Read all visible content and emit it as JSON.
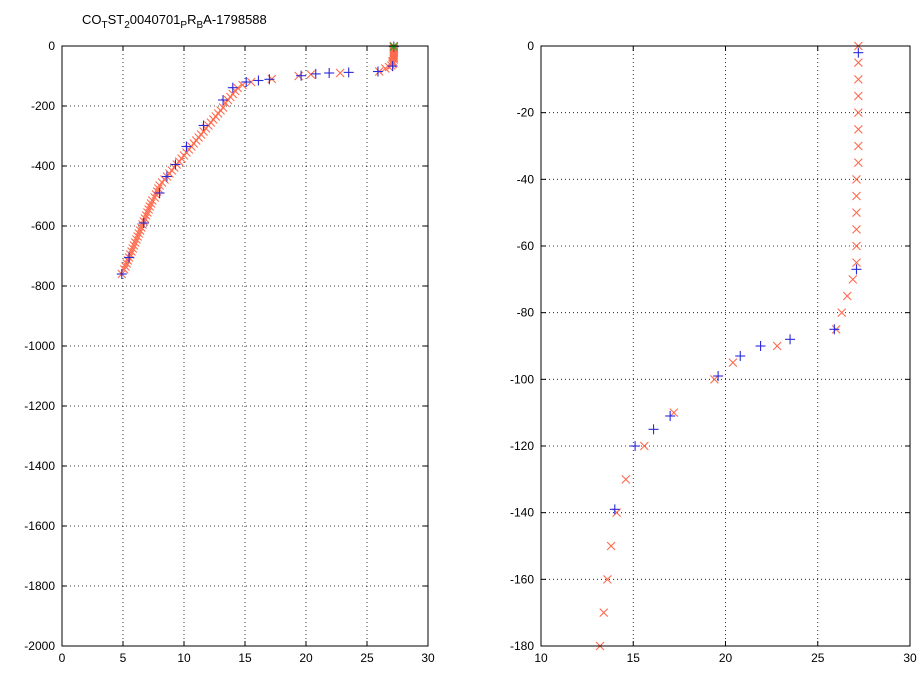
{
  "title_parts": [
    {
      "t": "CO",
      "sub": false
    },
    {
      "t": "T",
      "sub": true
    },
    {
      "t": "ST",
      "sub": false
    },
    {
      "t": "2",
      "sub": true
    },
    {
      "t": "0040701",
      "sub": false
    },
    {
      "t": "P",
      "sub": true
    },
    {
      "t": "R",
      "sub": false
    },
    {
      "t": "B",
      "sub": true
    },
    {
      "t": "A-1798588",
      "sub": false
    }
  ],
  "colors": {
    "red_series": "#ff6a4d",
    "blue_series": "#2b2bd9",
    "green_series": "#22aa22"
  },
  "chart_data": [
    {
      "type": "scatter",
      "xlim": [
        0,
        30
      ],
      "ylim": [
        -2000,
        0
      ],
      "xticks": [
        "0",
        "5",
        "10",
        "15",
        "20",
        "25",
        "30"
      ],
      "yticks": [
        "0",
        "-200",
        "-400",
        "-600",
        "-800",
        "-1000",
        "-1200",
        "-1400",
        "-1600",
        "-1800",
        "-2000"
      ],
      "grid": true,
      "series": [
        {
          "marker": "x",
          "color": "#ff6a4d",
          "points": [
            [
              4.9,
              -760
            ],
            [
              5.1,
              -745
            ],
            [
              5.2,
              -735
            ],
            [
              5.3,
              -725
            ],
            [
              5.4,
              -715
            ],
            [
              5.5,
              -705
            ],
            [
              5.6,
              -695
            ],
            [
              5.7,
              -685
            ],
            [
              5.8,
              -675
            ],
            [
              5.9,
              -665
            ],
            [
              6.0,
              -655
            ],
            [
              6.1,
              -645
            ],
            [
              6.2,
              -635
            ],
            [
              6.3,
              -625
            ],
            [
              6.4,
              -615
            ],
            [
              6.5,
              -605
            ],
            [
              6.6,
              -595
            ],
            [
              6.7,
              -585
            ],
            [
              6.8,
              -575
            ],
            [
              6.9,
              -565
            ],
            [
              7.0,
              -555
            ],
            [
              7.1,
              -545
            ],
            [
              7.2,
              -535
            ],
            [
              7.3,
              -525
            ],
            [
              7.4,
              -515
            ],
            [
              7.6,
              -505
            ],
            [
              7.7,
              -495
            ],
            [
              7.8,
              -485
            ],
            [
              7.9,
              -475
            ],
            [
              8.0,
              -465
            ],
            [
              8.2,
              -455
            ],
            [
              8.4,
              -445
            ],
            [
              8.6,
              -435
            ],
            [
              8.8,
              -425
            ],
            [
              9.0,
              -415
            ],
            [
              9.2,
              -405
            ],
            [
              9.4,
              -395
            ],
            [
              9.6,
              -385
            ],
            [
              9.8,
              -375
            ],
            [
              10.0,
              -365
            ],
            [
              10.2,
              -355
            ],
            [
              10.4,
              -345
            ],
            [
              10.6,
              -335
            ],
            [
              10.8,
              -325
            ],
            [
              11.0,
              -315
            ],
            [
              11.2,
              -305
            ],
            [
              11.4,
              -295
            ],
            [
              11.6,
              -285
            ],
            [
              11.8,
              -275
            ],
            [
              12.0,
              -265
            ],
            [
              12.2,
              -255
            ],
            [
              12.4,
              -245
            ],
            [
              12.6,
              -235
            ],
            [
              12.8,
              -225
            ],
            [
              13.0,
              -215
            ],
            [
              13.2,
              -205
            ],
            [
              13.4,
              -190
            ],
            [
              13.6,
              -180
            ],
            [
              13.8,
              -170
            ],
            [
              14.0,
              -160
            ],
            [
              14.2,
              -150
            ],
            [
              14.4,
              -140
            ],
            [
              14.8,
              -130
            ],
            [
              15.5,
              -120
            ],
            [
              17.2,
              -110
            ],
            [
              19.4,
              -100
            ],
            [
              20.4,
              -95
            ],
            [
              22.8,
              -90
            ],
            [
              26.0,
              -85
            ],
            [
              26.5,
              -75
            ],
            [
              26.8,
              -70
            ],
            [
              27.0,
              -65
            ],
            [
              27.1,
              -60
            ],
            [
              27.1,
              -55
            ],
            [
              27.1,
              -50
            ],
            [
              27.2,
              -45
            ],
            [
              27.2,
              -40
            ],
            [
              27.2,
              -35
            ],
            [
              27.2,
              -30
            ],
            [
              27.2,
              -25
            ],
            [
              27.2,
              -20
            ],
            [
              27.2,
              -15
            ],
            [
              27.2,
              -10
            ],
            [
              27.2,
              -5
            ],
            [
              27.2,
              0
            ]
          ]
        },
        {
          "marker": "+",
          "color": "#2b2bd9",
          "points": [
            [
              4.9,
              -760
            ],
            [
              5.5,
              -705
            ],
            [
              6.7,
              -590
            ],
            [
              8.0,
              -490
            ],
            [
              8.6,
              -435
            ],
            [
              9.3,
              -395
            ],
            [
              10.2,
              -335
            ],
            [
              11.6,
              -265
            ],
            [
              13.2,
              -180
            ],
            [
              14.0,
              -139
            ],
            [
              15.1,
              -120
            ],
            [
              16.1,
              -115
            ],
            [
              17.0,
              -111
            ],
            [
              19.6,
              -99
            ],
            [
              20.8,
              -93
            ],
            [
              21.9,
              -90
            ],
            [
              23.5,
              -88
            ],
            [
              25.9,
              -85
            ],
            [
              27.1,
              -67
            ],
            [
              27.2,
              -2
            ]
          ]
        },
        {
          "marker": "*",
          "color": "#22aa22",
          "points": [
            [
              27.2,
              -2
            ]
          ]
        }
      ]
    },
    {
      "type": "scatter",
      "xlim": [
        10,
        30
      ],
      "ylim": [
        -180,
        0
      ],
      "xticks": [
        "10",
        "15",
        "20",
        "25",
        "30"
      ],
      "yticks": [
        "0",
        "-20",
        "-40",
        "-60",
        "-80",
        "-100",
        "-120",
        "-140",
        "-160",
        "-180"
      ],
      "grid": true,
      "series": [
        {
          "marker": "x",
          "color": "#ff6a4d",
          "points": [
            [
              13.2,
              -180
            ],
            [
              13.4,
              -170
            ],
            [
              13.6,
              -160
            ],
            [
              13.8,
              -150
            ],
            [
              14.1,
              -140
            ],
            [
              14.6,
              -130
            ],
            [
              15.6,
              -120
            ],
            [
              17.2,
              -110
            ],
            [
              19.4,
              -100
            ],
            [
              20.4,
              -95
            ],
            [
              22.8,
              -90
            ],
            [
              26.0,
              -85
            ],
            [
              26.3,
              -80
            ],
            [
              26.6,
              -75
            ],
            [
              26.9,
              -70
            ],
            [
              27.1,
              -65
            ],
            [
              27.1,
              -60
            ],
            [
              27.1,
              -55
            ],
            [
              27.1,
              -50
            ],
            [
              27.1,
              -45
            ],
            [
              27.1,
              -40
            ],
            [
              27.2,
              -35
            ],
            [
              27.2,
              -30
            ],
            [
              27.2,
              -25
            ],
            [
              27.2,
              -20
            ],
            [
              27.2,
              -15
            ],
            [
              27.2,
              -10
            ],
            [
              27.2,
              -5
            ],
            [
              27.2,
              0
            ]
          ]
        },
        {
          "marker": "+",
          "color": "#2b2bd9",
          "points": [
            [
              14.0,
              -139
            ],
            [
              15.1,
              -120
            ],
            [
              16.1,
              -115
            ],
            [
              17.0,
              -111
            ],
            [
              19.6,
              -99
            ],
            [
              20.8,
              -93
            ],
            [
              21.9,
              -90
            ],
            [
              23.5,
              -88
            ],
            [
              25.9,
              -85
            ],
            [
              27.1,
              -67
            ],
            [
              27.2,
              -2
            ]
          ]
        }
      ]
    }
  ]
}
